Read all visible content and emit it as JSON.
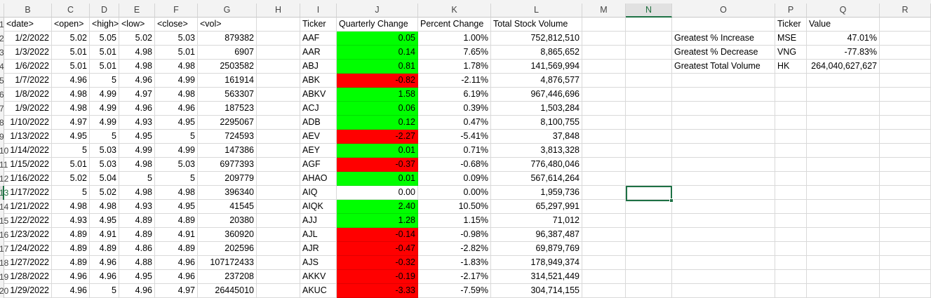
{
  "columns": [
    "B",
    "C",
    "D",
    "E",
    "F",
    "G",
    "H",
    "I",
    "J",
    "K",
    "L",
    "M",
    "N",
    "O",
    "P",
    "Q",
    "R"
  ],
  "row_numbers": [
    "1",
    "2",
    "3",
    "4",
    "5",
    "6",
    "7",
    "8",
    "9",
    "10",
    "11",
    "12",
    "13",
    "14",
    "15",
    "16",
    "17",
    "18",
    "19",
    "20"
  ],
  "stock_table": {
    "headers": [
      "<date>",
      "<open>",
      "<high>",
      "<low>",
      "<close>",
      "<vol>"
    ],
    "rows": [
      [
        "1/2/2022",
        "5.02",
        "5.05",
        "5.02",
        "5.03",
        "879382"
      ],
      [
        "1/3/2022",
        "5.01",
        "5.01",
        "4.98",
        "5.01",
        "6907"
      ],
      [
        "1/6/2022",
        "5.01",
        "5.01",
        "4.98",
        "4.98",
        "2503582"
      ],
      [
        "1/7/2022",
        "4.96",
        "5",
        "4.96",
        "4.99",
        "161914"
      ],
      [
        "1/8/2022",
        "4.98",
        "4.99",
        "4.97",
        "4.98",
        "563307"
      ],
      [
        "1/9/2022",
        "4.98",
        "4.99",
        "4.96",
        "4.96",
        "187523"
      ],
      [
        "1/10/2022",
        "4.97",
        "4.99",
        "4.93",
        "4.95",
        "2295067"
      ],
      [
        "1/13/2022",
        "4.95",
        "5",
        "4.95",
        "5",
        "724593"
      ],
      [
        "1/14/2022",
        "5",
        "5.03",
        "4.99",
        "4.99",
        "147386"
      ],
      [
        "1/15/2022",
        "5.01",
        "5.03",
        "4.98",
        "5.03",
        "6977393"
      ],
      [
        "1/16/2022",
        "5.02",
        "5.04",
        "5",
        "5",
        "209779"
      ],
      [
        "1/17/2022",
        "5",
        "5.02",
        "4.98",
        "4.98",
        "396340"
      ],
      [
        "1/21/2022",
        "4.98",
        "4.98",
        "4.93",
        "4.95",
        "41545"
      ],
      [
        "1/22/2022",
        "4.93",
        "4.95",
        "4.89",
        "4.89",
        "20380"
      ],
      [
        "1/23/2022",
        "4.89",
        "4.91",
        "4.89",
        "4.91",
        "360920"
      ],
      [
        "1/24/2022",
        "4.89",
        "4.89",
        "4.86",
        "4.89",
        "202596"
      ],
      [
        "1/27/2022",
        "4.89",
        "4.96",
        "4.88",
        "4.96",
        "107172433"
      ],
      [
        "1/28/2022",
        "4.96",
        "4.96",
        "4.95",
        "4.96",
        "237208"
      ],
      [
        "1/29/2022",
        "4.96",
        "5",
        "4.96",
        "4.97",
        "26445010"
      ]
    ]
  },
  "summary_table": {
    "headers": [
      "Ticker",
      "Quarterly Change",
      "Percent Change",
      "Total Stock Volume"
    ],
    "rows": [
      [
        "AAF",
        "0.05",
        "1.00%",
        "752,812,510"
      ],
      [
        "AAR",
        "0.14",
        "7.65%",
        "8,865,652"
      ],
      [
        "ABJ",
        "0.81",
        "1.78%",
        "141,569,994"
      ],
      [
        "ABK",
        "-0.82",
        "-2.11%",
        "4,876,577"
      ],
      [
        "ABKV",
        "1.58",
        "6.19%",
        "967,446,696"
      ],
      [
        "ACJ",
        "0.06",
        "0.39%",
        "1,503,284"
      ],
      [
        "ADB",
        "0.12",
        "0.47%",
        "8,100,755"
      ],
      [
        "AEV",
        "-2.27",
        "-5.41%",
        "37,848"
      ],
      [
        "AEY",
        "0.01",
        "0.71%",
        "3,813,328"
      ],
      [
        "AGF",
        "-0.37",
        "-0.68%",
        "776,480,046"
      ],
      [
        "AHAO",
        "0.01",
        "0.09%",
        "567,614,264"
      ],
      [
        "AIQ",
        "0.00",
        "0.00%",
        "1,959,736"
      ],
      [
        "AIQK",
        "2.40",
        "10.50%",
        "65,297,991"
      ],
      [
        "AJJ",
        "1.28",
        "1.15%",
        "71,012"
      ],
      [
        "AJL",
        "-0.14",
        "-0.98%",
        "96,387,487"
      ],
      [
        "AJR",
        "-0.47",
        "-2.82%",
        "69,879,769"
      ],
      [
        "AJS",
        "-0.32",
        "-1.83%",
        "178,949,374"
      ],
      [
        "AKKV",
        "-0.19",
        "-2.17%",
        "314,521,449"
      ],
      [
        "AKUC",
        "-3.33",
        "-7.59%",
        "304,714,155"
      ]
    ]
  },
  "greatest_table": {
    "headers": [
      "Ticker",
      "Value"
    ],
    "rows": [
      [
        "Greatest % Increase",
        "MSE",
        "47.01%"
      ],
      [
        "Greatest % Decrease",
        "VNG",
        "-77.83%"
      ],
      [
        "Greatest Total Volume",
        "HK",
        "264,040,627,627"
      ]
    ]
  },
  "colors": {
    "positive_fill": "#00ff00",
    "negative_fill": "#ff0000",
    "selection": "#1e7145"
  },
  "selected_cell": "N13"
}
